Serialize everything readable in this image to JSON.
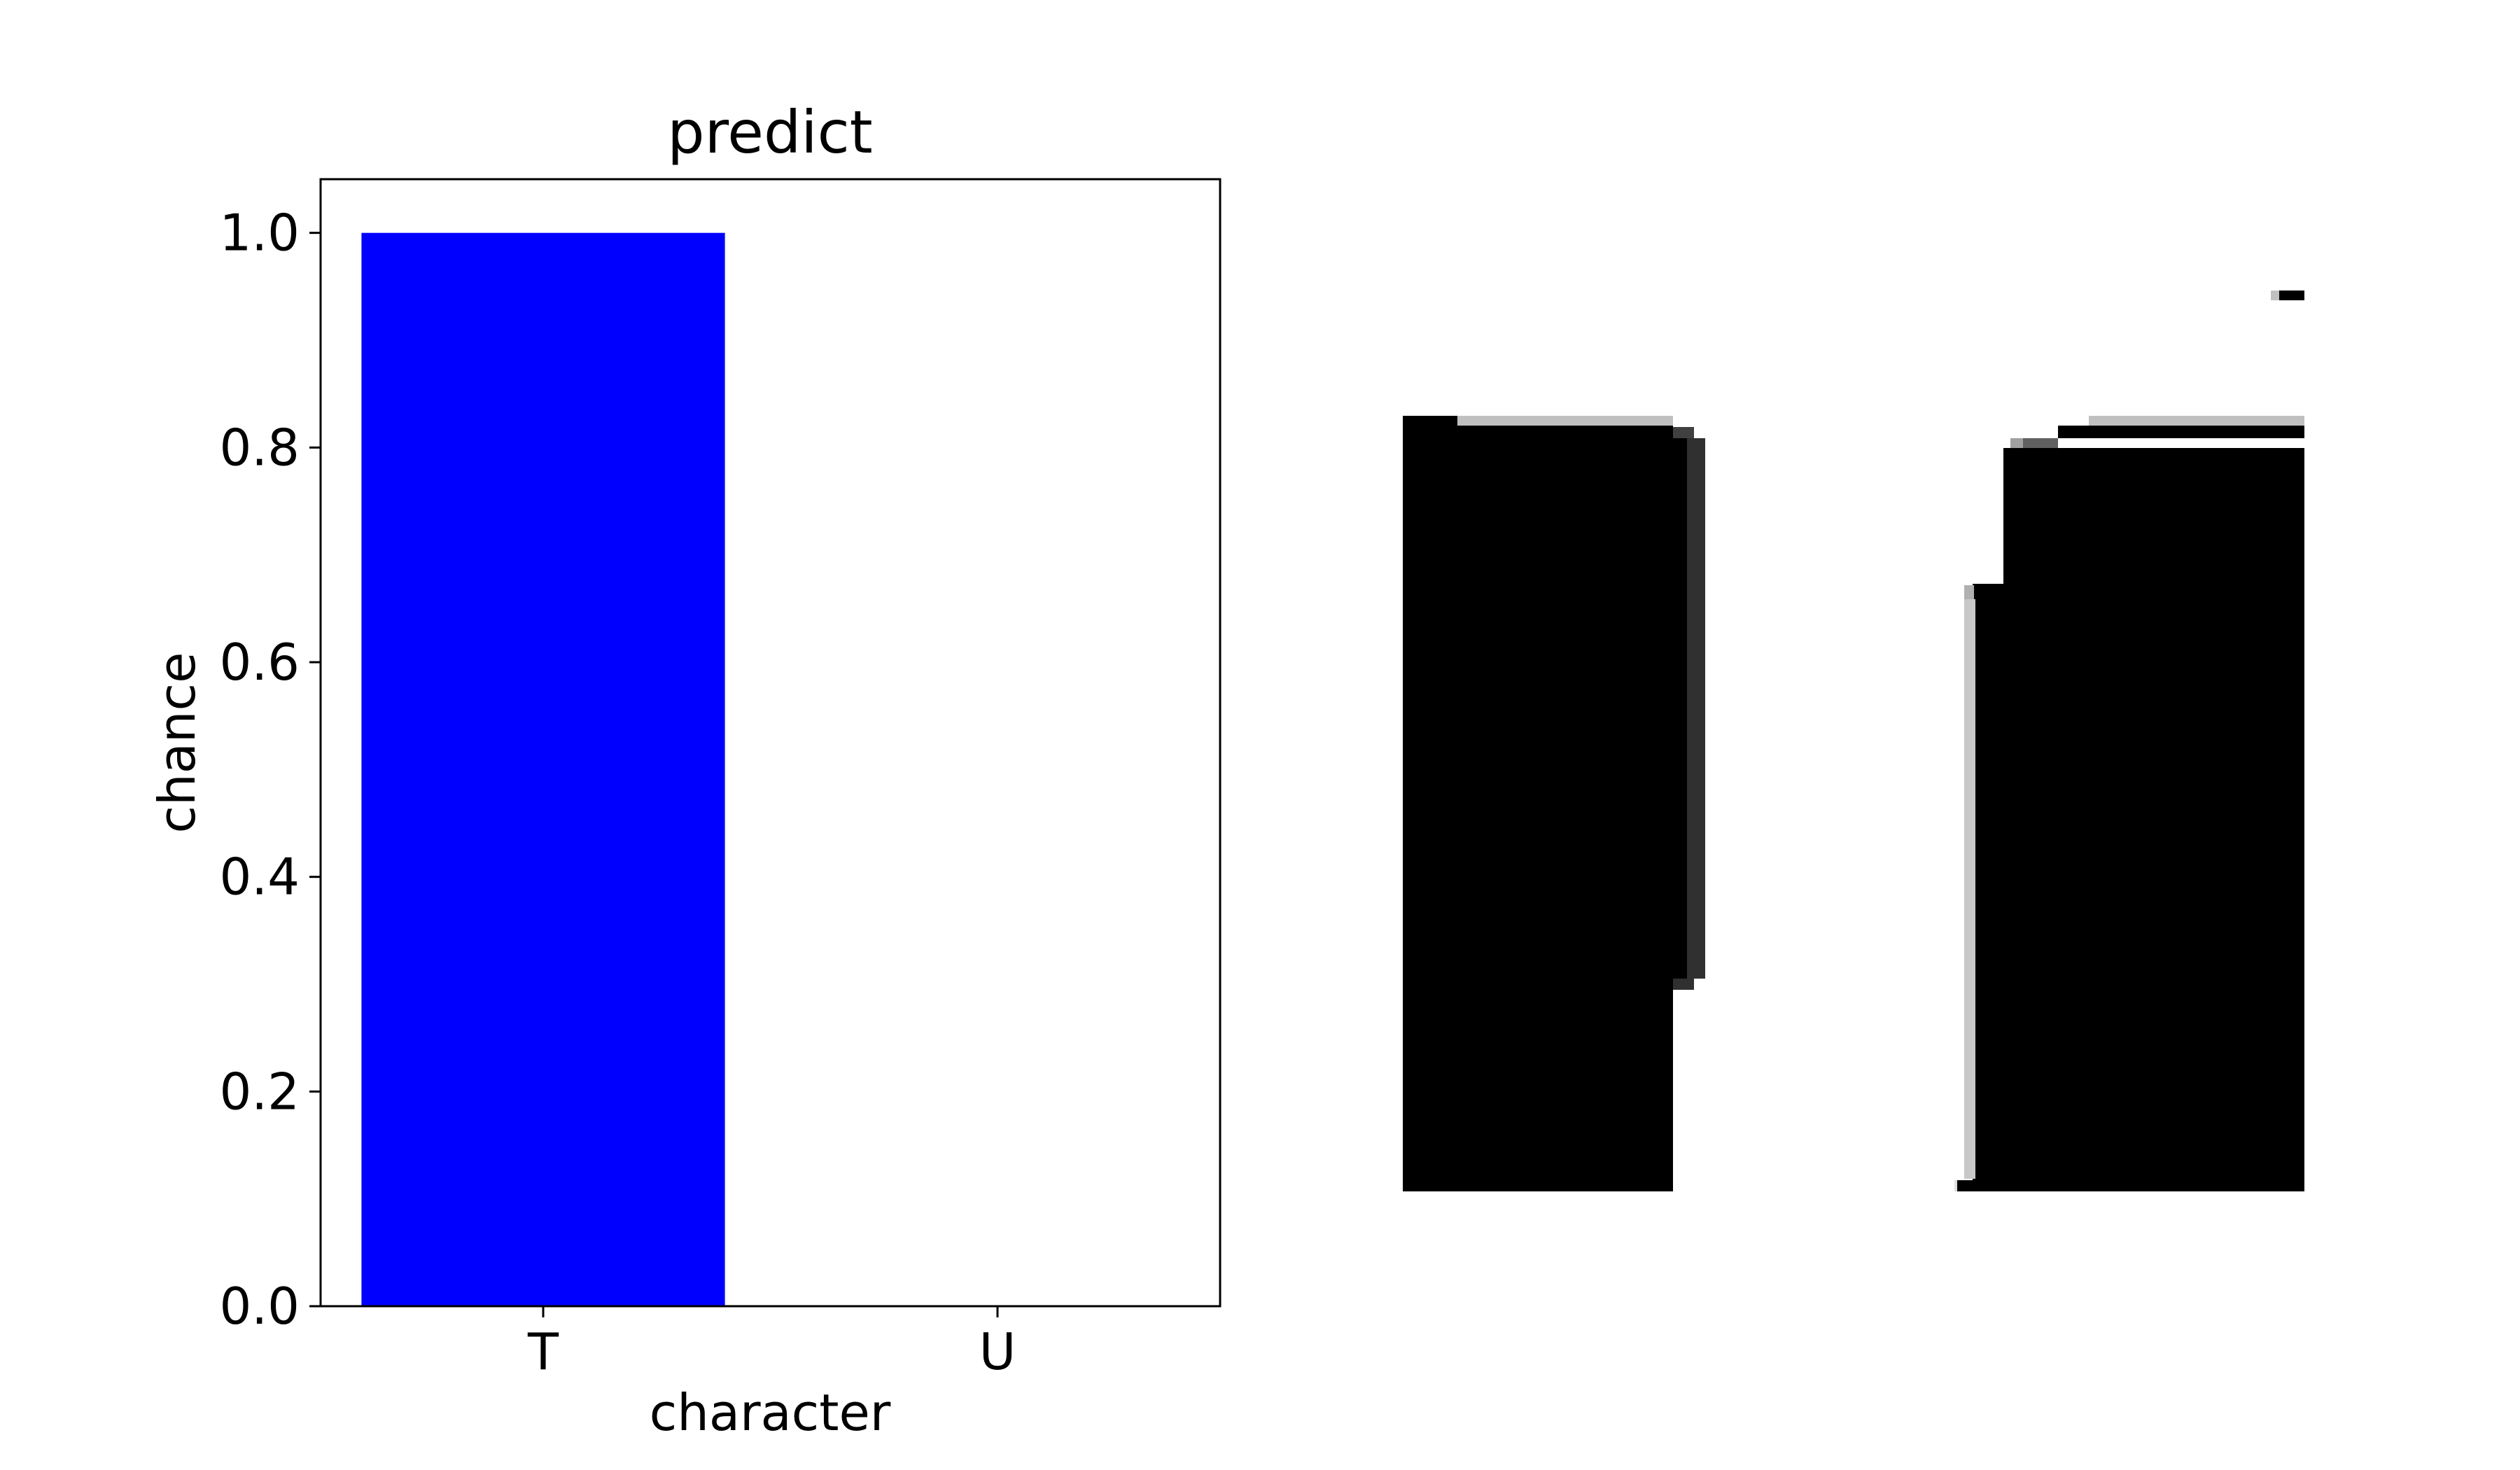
{
  "chart_data": {
    "type": "bar",
    "title": "predict",
    "xlabel": "character",
    "ylabel": "chance",
    "categories": [
      "T",
      "U"
    ],
    "values": [
      1.0,
      0.0
    ],
    "bar_color": "#0000ff",
    "ylim": [
      0,
      1.05
    ],
    "yticks": [
      "0.0",
      "0.2",
      "0.4",
      "0.6",
      "0.8",
      "1.0"
    ],
    "grid": false,
    "legend": "none"
  },
  "input_image": {
    "description_for_alt": "",
    "foreground": "#000000",
    "background": "#ffffff"
  }
}
